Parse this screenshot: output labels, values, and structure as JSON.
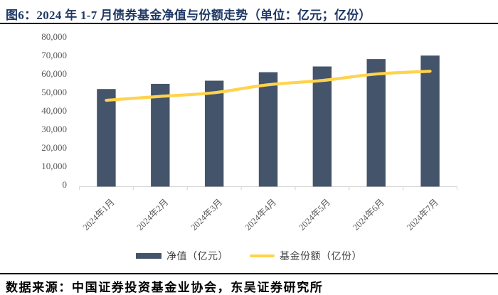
{
  "header": {
    "figure_label": "图6：",
    "title": "2024 年 1-7 月债券基金净值与份额走势（单位：亿元；亿份）"
  },
  "chart_data": {
    "type": "combo",
    "title": "2024 年 1-7 月债券基金净值与份额走势",
    "units": "亿元；亿份",
    "categories": [
      "2024年1月",
      "2024年2月",
      "2024年3月",
      "2024年4月",
      "2024年5月",
      "2024年6月",
      "2024年7月"
    ],
    "series": [
      {
        "name": "净值（亿元）",
        "type": "bar",
        "color": "#44546A",
        "values": [
          52800,
          55600,
          57300,
          61900,
          65000,
          69000,
          70900
        ]
      },
      {
        "name": "基金份额（亿份）",
        "type": "line",
        "color": "#FFD34D",
        "values": [
          46700,
          48800,
          50800,
          55100,
          57400,
          60900,
          62400
        ]
      }
    ],
    "ylim": [
      0,
      80000
    ],
    "ytick_step": 10000,
    "ytick_labels": [
      "0",
      "10,000",
      "20,000",
      "30,000",
      "40,000",
      "50,000",
      "60,000",
      "70,000",
      "80,000"
    ],
    "grid": "off",
    "legend_position": "bottom",
    "colors": {
      "bar": "#44546A",
      "line": "#FFD34D",
      "title_text": "#1F3864",
      "axis_text": "#595959",
      "axis_line": "#D9D9D9",
      "rule": "#000000"
    }
  },
  "footer": {
    "source": "数据来源：中国证券投资基金业协会，东吴证券研究所"
  }
}
